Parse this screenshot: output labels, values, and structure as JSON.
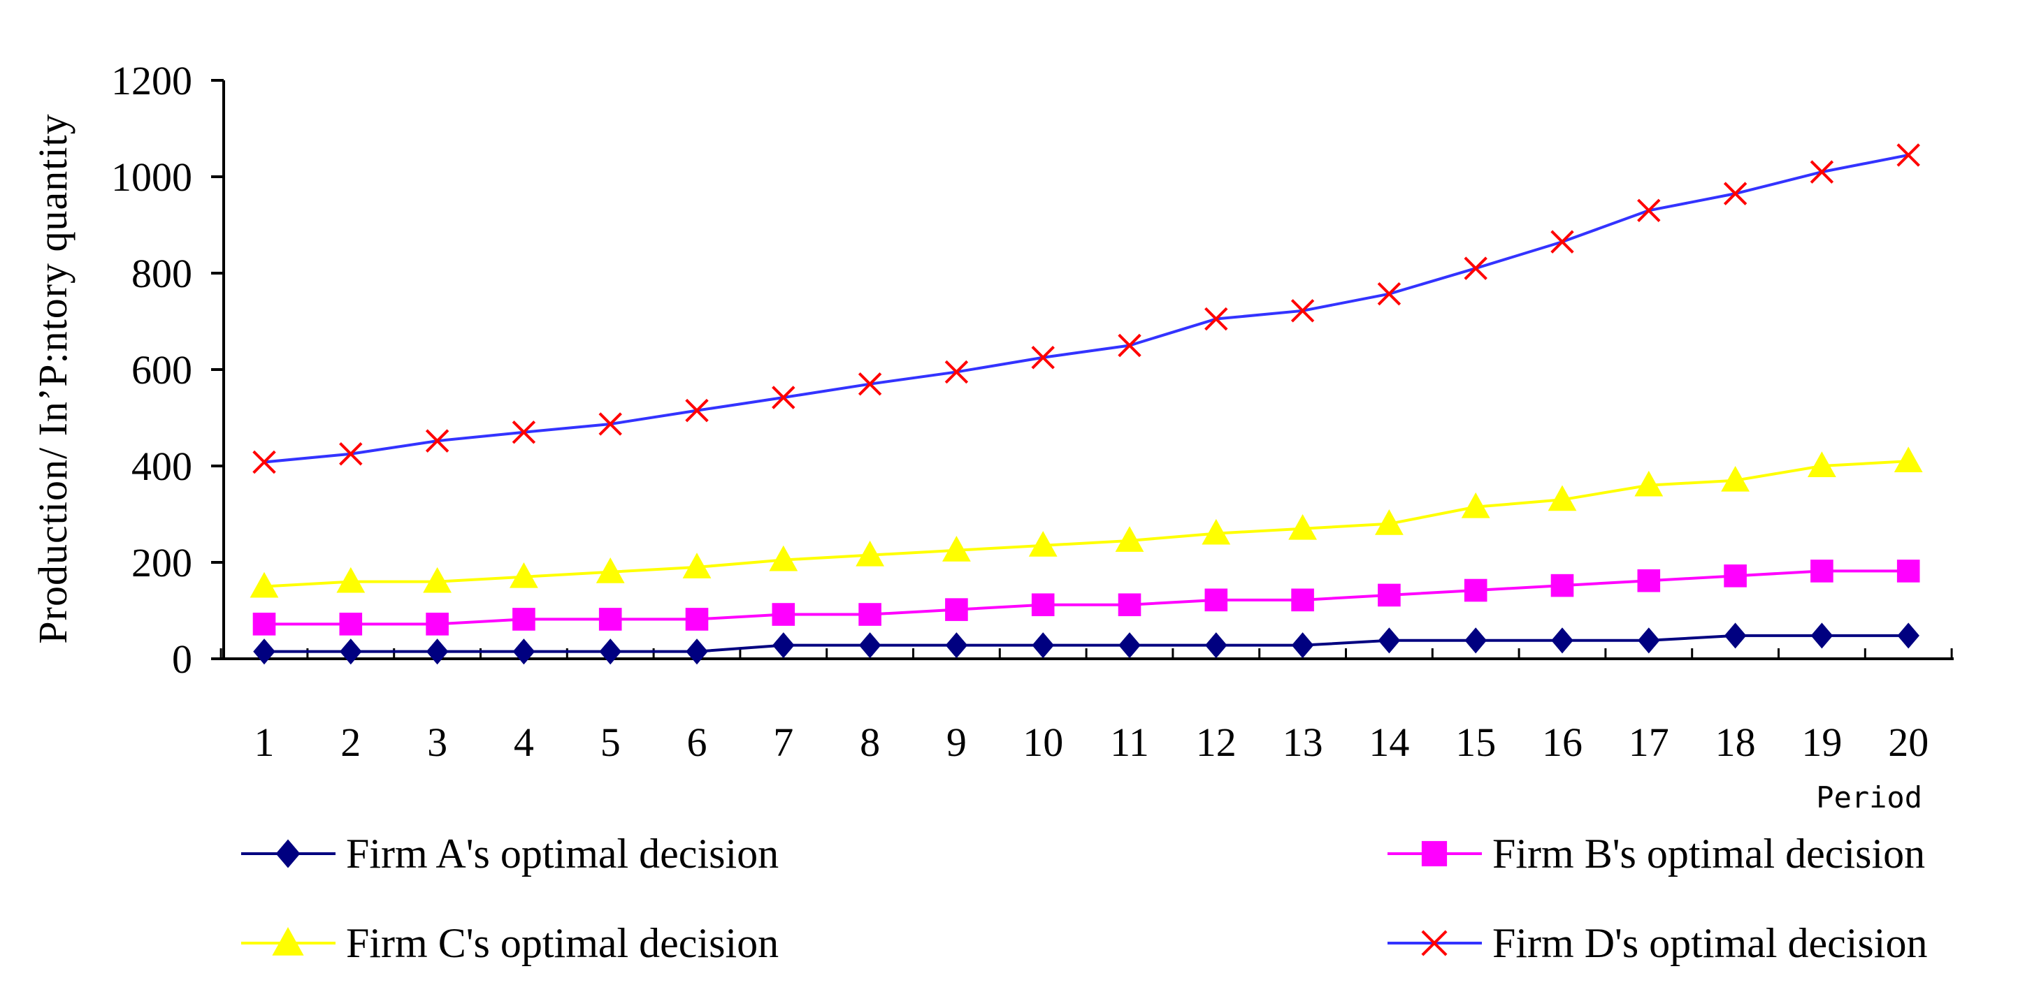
{
  "chart_data": {
    "type": "line",
    "title": "",
    "xlabel": "Period",
    "ylabel": "Production/ In’P:ntory quantity",
    "categories": [
      "1",
      "2",
      "3",
      "4",
      "5",
      "6",
      "7",
      "8",
      "9",
      "10",
      "11",
      "12",
      "13",
      "14",
      "15",
      "16",
      "17",
      "18",
      "19",
      "20"
    ],
    "ylim": [
      0,
      1200
    ],
    "yticks": [
      "0",
      "200",
      "400",
      "600",
      "800",
      "1000",
      "1200"
    ],
    "grid": false,
    "legend_position": "bottom",
    "series": [
      {
        "name": "Firm A's optimal decision",
        "color": "#000080",
        "marker": "diamond",
        "values": [
          15,
          15,
          15,
          15,
          15,
          15,
          28,
          28,
          28,
          28,
          28,
          28,
          28,
          38,
          38,
          38,
          38,
          48,
          48,
          48
        ]
      },
      {
        "name": "Firm B's optimal decision",
        "color": "#ff00ff",
        "marker": "square",
        "values": [
          72,
          72,
          72,
          82,
          82,
          82,
          92,
          92,
          102,
          112,
          112,
          122,
          122,
          132,
          142,
          152,
          162,
          172,
          182,
          182
        ]
      },
      {
        "name": "Firm C's optimal decision",
        "color": "#ffff00",
        "marker": "triangle",
        "values": [
          150,
          160,
          160,
          170,
          180,
          190,
          205,
          215,
          225,
          235,
          245,
          260,
          270,
          280,
          315,
          330,
          360,
          370,
          400,
          410
        ]
      },
      {
        "name": "Firm D's optimal decision",
        "color": "#3333ff",
        "marker": "x",
        "marker_color": "#ff0000",
        "values": [
          408,
          425,
          452,
          470,
          487,
          515,
          542,
          570,
          595,
          625,
          650,
          705,
          722,
          757,
          810,
          865,
          930,
          965,
          1010,
          1045
        ]
      }
    ]
  }
}
